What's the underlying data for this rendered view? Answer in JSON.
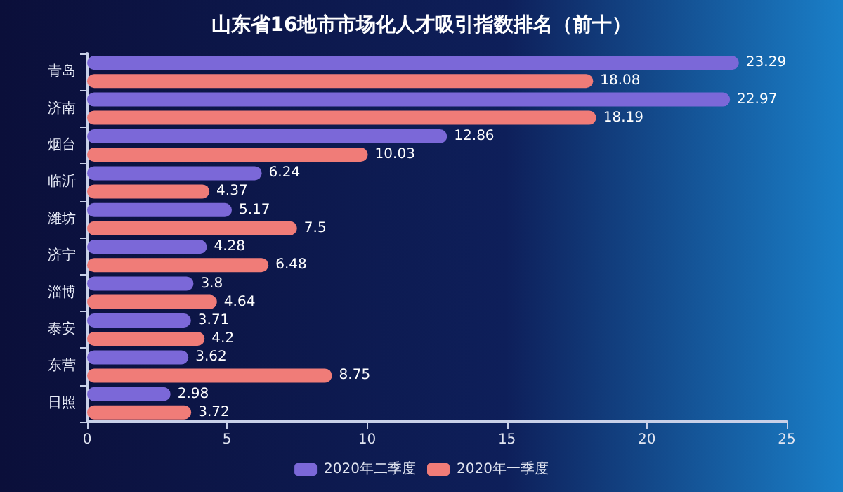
{
  "chart_data": {
    "type": "bar",
    "orientation": "horizontal",
    "title": "山东省16地市市场化人才吸引指数排名（前十）",
    "categories": [
      "青岛",
      "济南",
      "烟台",
      "临沂",
      "潍坊",
      "济宁",
      "淄博",
      "泰安",
      "东营",
      "日照"
    ],
    "series": [
      {
        "name": "2020年二季度",
        "color": "#7b68d8",
        "values": [
          23.29,
          22.97,
          12.86,
          6.24,
          5.17,
          4.28,
          3.8,
          3.71,
          3.62,
          2.98
        ]
      },
      {
        "name": "2020年一季度",
        "color": "#f07c78",
        "values": [
          18.08,
          18.19,
          10.03,
          4.37,
          7.5,
          6.48,
          4.64,
          4.2,
          8.75,
          3.72
        ]
      }
    ],
    "xlim": [
      0,
      25
    ],
    "xticks": [
      0,
      5,
      10,
      15,
      20,
      25
    ],
    "data_labels": true,
    "grid": false,
    "legend": "bottom"
  }
}
